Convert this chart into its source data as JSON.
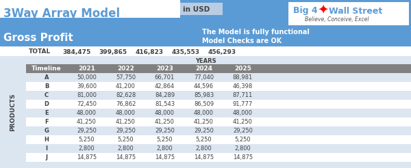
{
  "title": "3Way Array Model",
  "subtitle": "in USD",
  "section": "Gross Profit",
  "model_note1": "The Model is fully functional",
  "model_note2": "Model Checks are OK",
  "logo_text1": "Big 4",
  "logo_text2": "Wall Street",
  "logo_sub": "Believe, Conceive, Excel",
  "totals_label": "TOTAL",
  "totals": [
    "384,475",
    "399,865",
    "416,823",
    "435,553",
    "456,293"
  ],
  "years_label": "YEARS",
  "header_row": [
    "Timeline",
    "2021",
    "2022",
    "2023",
    "2024",
    "2025"
  ],
  "row_labels": [
    "A",
    "B",
    "C",
    "D",
    "E",
    "F",
    "G",
    "H",
    "I",
    "J"
  ],
  "products_label": "PRODUCTS",
  "data": [
    [
      "50,000",
      "57,750",
      "66,701",
      "77,040",
      "88,981"
    ],
    [
      "39,600",
      "41,200",
      "42,864",
      "44,596",
      "46,398"
    ],
    [
      "81,000",
      "82,628",
      "84,289",
      "85,983",
      "87,711"
    ],
    [
      "72,450",
      "76,862",
      "81,543",
      "86,509",
      "91,777"
    ],
    [
      "48,000",
      "48,000",
      "48,000",
      "48,000",
      "48,000"
    ],
    [
      "41,250",
      "41,250",
      "41,250",
      "41,250",
      "41,250"
    ],
    [
      "29,250",
      "29,250",
      "29,250",
      "29,250",
      "29,250"
    ],
    [
      "5,250",
      "5,250",
      "5,250",
      "5,250",
      "5,250"
    ],
    [
      "2,800",
      "2,800",
      "2,800",
      "2,800",
      "2,800"
    ],
    [
      "14,875",
      "14,875",
      "14,875",
      "14,875",
      "14,875"
    ]
  ],
  "blue_bg": "#5b9bd5",
  "dark_blue_bg": "#4472c4",
  "white_bg": "#ffffff",
  "grey_bg": "#808080",
  "light_grey_bg": "#d9d9d9",
  "table_light_bg": "#dce6f1",
  "table_row_alt": "#eef2f8",
  "total_text_color": "#404040",
  "logo_border": "#5b9bd5",
  "in_usd_bg": "#b8cce4",
  "years_band_bg": "#dce6f1"
}
